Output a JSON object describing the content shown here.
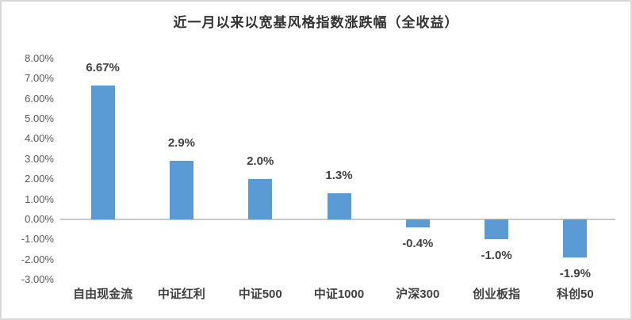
{
  "card": {
    "background": "#ffffff",
    "border_color": "#d9d9d9"
  },
  "chart_data": {
    "type": "bar",
    "title": "近一月以来以宽基风格指数涨跌幅（全收益）",
    "categories": [
      "自由现金流",
      "中证红利",
      "中证500",
      "中证1000",
      "沪深300",
      "创业板指",
      "科创50"
    ],
    "values": [
      6.67,
      2.9,
      2.0,
      1.3,
      -0.4,
      -1.0,
      -1.9
    ],
    "data_labels": [
      "6.67%",
      "2.9%",
      "2.0%",
      "1.3%",
      "-0.4%",
      "-1.0%",
      "-1.9%"
    ],
    "y_ticks": [
      "8.00%",
      "7.00%",
      "6.00%",
      "5.00%",
      "4.00%",
      "3.00%",
      "2.00%",
      "1.00%",
      "0.00%",
      "-1.00%",
      "-2.00%",
      "-3.00%"
    ],
    "y_tick_values": [
      8,
      7,
      6,
      5,
      4,
      3,
      2,
      1,
      0,
      -1,
      -2,
      -3
    ],
    "ylim": [
      -3,
      8
    ],
    "xlabel": "",
    "ylabel": "",
    "grid": false,
    "legend": "none",
    "bar_color": "#5b9bd5",
    "axis_line_color": "#c9c9c9",
    "label_position": "outside-end"
  }
}
